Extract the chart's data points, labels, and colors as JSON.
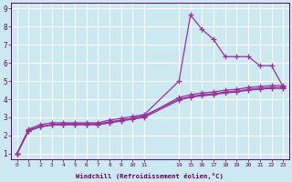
{
  "background_color": "#cce8f0",
  "grid_color": "#ffffff",
  "line_color": "#993399",
  "xlabel": "Windchill (Refroidissement éolien,°C)",
  "xlabel_color": "#660066",
  "tick_color": "#660066",
  "xlim": [
    -0.5,
    23.5
  ],
  "ylim": [
    0.7,
    9.3
  ],
  "xticks": [
    0,
    1,
    2,
    3,
    4,
    5,
    6,
    7,
    8,
    9,
    10,
    11,
    14,
    15,
    16,
    17,
    18,
    19,
    20,
    21,
    22,
    23
  ],
  "yticks": [
    1,
    2,
    3,
    4,
    5,
    6,
    7,
    8,
    9
  ],
  "series": [
    {
      "x": [
        0,
        1,
        2,
        3,
        4,
        5,
        6,
        7,
        8,
        9,
        10,
        11,
        14,
        15,
        16,
        17,
        18,
        19,
        20,
        21,
        22,
        23
      ],
      "y": [
        1.0,
        2.35,
        2.6,
        2.7,
        2.7,
        2.7,
        2.7,
        2.7,
        2.85,
        2.95,
        3.05,
        3.15,
        5.0,
        8.65,
        7.85,
        7.3,
        6.35,
        6.35,
        6.35,
        5.85,
        5.85,
        4.7
      ]
    },
    {
      "x": [
        0,
        1,
        2,
        3,
        4,
        5,
        6,
        7,
        8,
        9,
        10,
        11,
        14,
        15,
        16,
        17,
        18,
        19,
        20,
        21,
        22,
        23
      ],
      "y": [
        1.0,
        2.3,
        2.5,
        2.6,
        2.65,
        2.65,
        2.65,
        2.65,
        2.75,
        2.85,
        2.95,
        3.05,
        4.1,
        4.25,
        4.35,
        4.4,
        4.5,
        4.55,
        4.65,
        4.7,
        4.75,
        4.75
      ]
    },
    {
      "x": [
        0,
        1,
        2,
        3,
        4,
        5,
        6,
        7,
        8,
        9,
        10,
        11,
        14,
        15,
        16,
        17,
        18,
        19,
        20,
        21,
        22,
        23
      ],
      "y": [
        1.0,
        2.25,
        2.48,
        2.58,
        2.6,
        2.6,
        2.6,
        2.6,
        2.7,
        2.8,
        2.9,
        3.0,
        3.95,
        4.1,
        4.2,
        4.25,
        4.35,
        4.4,
        4.5,
        4.55,
        4.6,
        4.6
      ]
    },
    {
      "x": [
        0,
        1,
        2,
        3,
        4,
        5,
        6,
        7,
        8,
        9,
        10,
        11,
        14,
        15,
        16,
        17,
        18,
        19,
        20,
        21,
        22,
        23
      ],
      "y": [
        1.0,
        2.25,
        2.48,
        2.58,
        2.6,
        2.6,
        2.6,
        2.6,
        2.7,
        2.82,
        2.95,
        3.1,
        4.0,
        4.15,
        4.25,
        4.3,
        4.4,
        4.45,
        4.55,
        4.6,
        4.65,
        4.65
      ]
    }
  ],
  "marker": "+",
  "markersize": 4,
  "linewidth": 0.9
}
